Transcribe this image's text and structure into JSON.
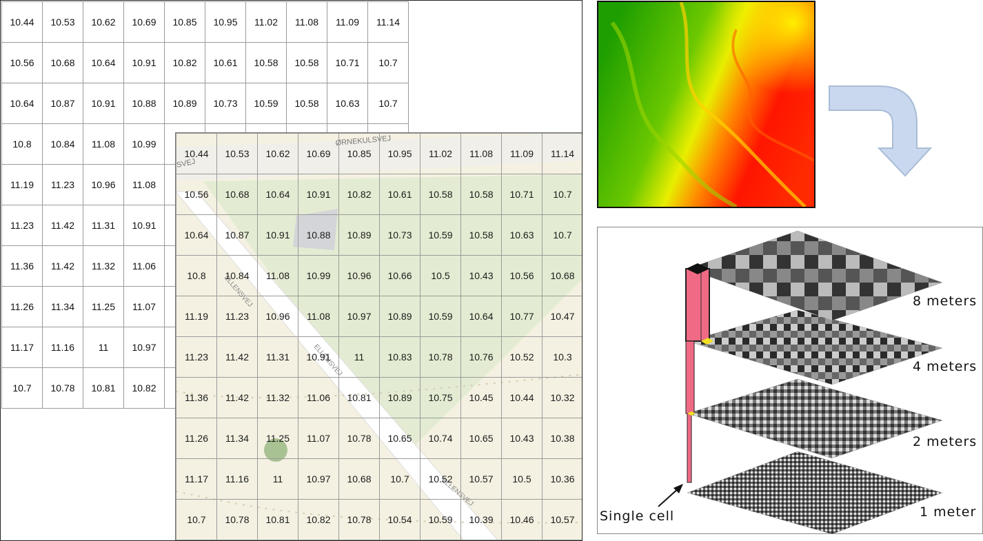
{
  "back_grid": {
    "rows": [
      [
        "10.44",
        "10.53",
        "10.62",
        "10.69",
        "10.85",
        "10.95",
        "11.02",
        "11.08",
        "11.09",
        "11.14"
      ],
      [
        "10.56",
        "10.68",
        "10.64",
        "10.91",
        "10.82",
        "10.61",
        "10.58",
        "10.58",
        "10.71",
        "10.7"
      ],
      [
        "10.64",
        "10.87",
        "10.91",
        "10.88",
        "10.89",
        "10.73",
        "10.59",
        "10.58",
        "10.63",
        "10.7"
      ],
      [
        "10.8",
        "10.84",
        "11.08",
        "10.99",
        "",
        "",
        "",
        "",
        "",
        ""
      ],
      [
        "11.19",
        "11.23",
        "10.96",
        "11.08",
        "",
        "",
        "",
        "",
        "",
        ""
      ],
      [
        "11.23",
        "11.42",
        "11.31",
        "10.91",
        "",
        "",
        "",
        "",
        "",
        ""
      ],
      [
        "11.36",
        "11.42",
        "11.32",
        "11.06",
        "",
        "",
        "",
        "",
        "",
        ""
      ],
      [
        "11.26",
        "11.34",
        "11.25",
        "11.07",
        "",
        "",
        "",
        "",
        "",
        ""
      ],
      [
        "11.17",
        "11.16",
        "11",
        "10.97",
        "",
        "",
        "",
        "",
        "",
        ""
      ],
      [
        "10.7",
        "10.78",
        "10.81",
        "10.82",
        "",
        "",
        "",
        "",
        "",
        ""
      ]
    ]
  },
  "front_grid": {
    "rows": [
      [
        "10.44",
        "10.53",
        "10.62",
        "10.69",
        "10.85",
        "10.95",
        "11.02",
        "11.08",
        "11.09",
        "11.14"
      ],
      [
        "10.56",
        "10.68",
        "10.64",
        "10.91",
        "10.82",
        "10.61",
        "10.58",
        "10.58",
        "10.71",
        "10.7"
      ],
      [
        "10.64",
        "10.87",
        "10.91",
        "10.88",
        "10.89",
        "10.73",
        "10.59",
        "10.58",
        "10.63",
        "10.7"
      ],
      [
        "10.8",
        "10.84",
        "11.08",
        "10.99",
        "10.96",
        "10.66",
        "10.5",
        "10.43",
        "10.56",
        "10.68"
      ],
      [
        "11.19",
        "11.23",
        "10.96",
        "11.08",
        "10.97",
        "10.89",
        "10.59",
        "10.64",
        "10.77",
        "10.47"
      ],
      [
        "11.23",
        "11.42",
        "11.31",
        "10.91",
        "11",
        "10.83",
        "10.78",
        "10.76",
        "10.52",
        "10.3"
      ],
      [
        "11.36",
        "11.42",
        "11.32",
        "11.06",
        "10.81",
        "10.89",
        "10.75",
        "10.45",
        "10.44",
        "10.32"
      ],
      [
        "11.26",
        "11.34",
        "11.25",
        "11.07",
        "10.78",
        "10.65",
        "10.74",
        "10.65",
        "10.43",
        "10.38"
      ],
      [
        "11.17",
        "11.16",
        "11",
        "10.97",
        "10.68",
        "10.7",
        "10.52",
        "10.57",
        "10.5",
        "10.36"
      ],
      [
        "10.7",
        "10.78",
        "10.81",
        "10.82",
        "10.78",
        "10.54",
        "10.59",
        "10.39",
        "10.46",
        "10.57"
      ]
    ]
  },
  "map_labels": {
    "street_1": "ØRNEKULSVEJ",
    "street_1_fragment": "SVEJ",
    "street_2": "ELLENSVEJ",
    "street_3": "ELLENSVEJ",
    "street_4": "ELLENSVEJ"
  },
  "layers": {
    "label_8": "8 meters",
    "label_4": "4 meters",
    "label_2": "2 meters",
    "label_1": "1 meter",
    "single_cell": "Single cell"
  },
  "colors": {
    "dem_high": "#ff0000",
    "dem_mid": "#ffff00",
    "dem_low": "#22aa00",
    "arrow_fill": "#c9d8ee",
    "arrow_stroke": "#a9bcd6",
    "column_fill": "#f06a85"
  },
  "icons": {
    "flow_arrow": "curved-down-arrow-icon"
  }
}
